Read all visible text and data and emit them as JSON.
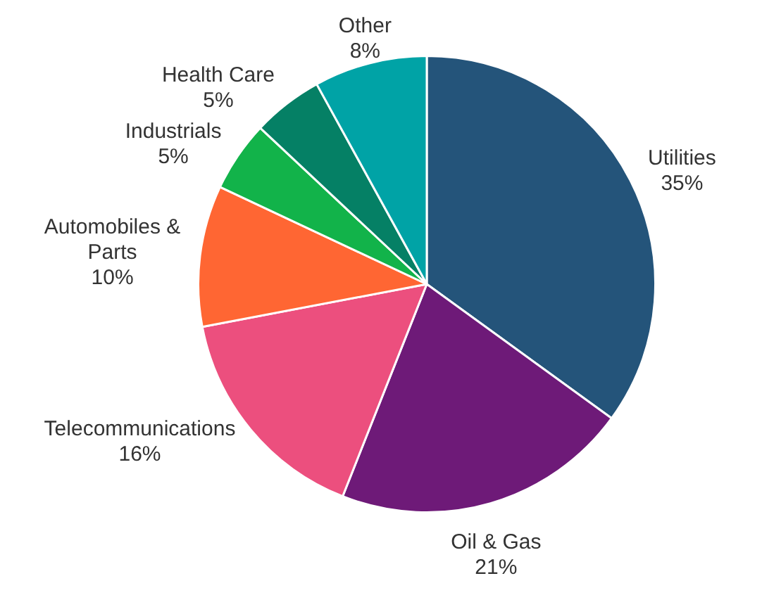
{
  "chart_data": {
    "type": "pie",
    "categories": [
      "Utilities",
      "Oil & Gas",
      "Telecommunications",
      "Automobiles & Parts",
      "Industrials",
      "Health Care",
      "Other"
    ],
    "values": [
      35,
      21,
      16,
      10,
      5,
      5,
      8
    ],
    "colors": [
      "#24547a",
      "#6e1a78",
      "#ec4f7e",
      "#ff6633",
      "#12b34a",
      "#058065",
      "#00a3a6"
    ],
    "value_labels": [
      "35%",
      "21%",
      "16%",
      "10%",
      "5%",
      "5%",
      "8%"
    ],
    "legend": false
  }
}
